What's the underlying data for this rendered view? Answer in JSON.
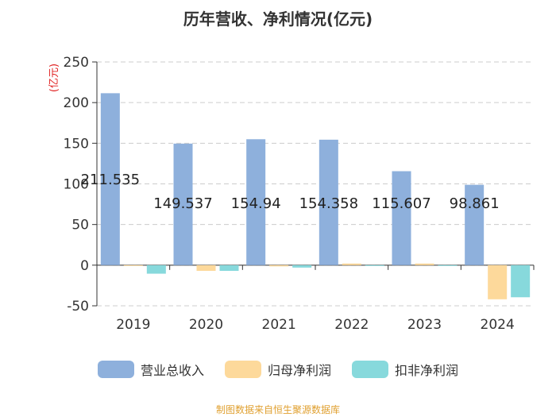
{
  "chart_data": {
    "type": "bar",
    "title": "历年营收、净利情况(亿元)",
    "ylabel": "(亿元)",
    "ylim": [
      -50,
      250
    ],
    "yticks": [
      "250",
      "200",
      "150",
      "100",
      "50",
      "0",
      "-50"
    ],
    "grid": true,
    "legend_position": "bottom",
    "categories": [
      "2019",
      "2020",
      "2021",
      "2022",
      "2023",
      "2024"
    ],
    "series": [
      {
        "name": "营业总收入",
        "color": "#8eb0dc",
        "values": [
          211.535,
          149.537,
          154.94,
          154.358,
          115.607,
          98.861
        ],
        "labels": [
          "211.535",
          "149.537",
          "154.94",
          "154.358",
          "115.607",
          "98.861"
        ]
      },
      {
        "name": "归母净利润",
        "color": "#fdd99b",
        "values": [
          -0.3,
          -7.0,
          -1.5,
          2.0,
          2.0,
          -42.0
        ]
      },
      {
        "name": "扣非净利润",
        "color": "#87d9dc",
        "values": [
          -10.5,
          -7.0,
          -3.0,
          -0.5,
          -0.5,
          -39.5
        ]
      }
    ]
  },
  "source": "制图数据来自恒生聚源数据库"
}
